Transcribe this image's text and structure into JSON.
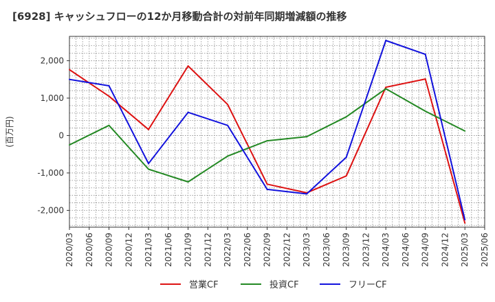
{
  "chart_data": {
    "type": "line",
    "title": "[6928]  キャッシュフローの12か月移動合計の対前年同期増減額の推移",
    "ylabel": "(百万円)",
    "xlabel": "",
    "ylim": [
      -2450,
      2650
    ],
    "yticks": [
      -2000,
      -1000,
      0,
      1000,
      2000
    ],
    "ytick_labels": [
      "-2,000",
      "-1,000",
      "0",
      "1,000",
      "2,000"
    ],
    "categories": [
      "2020/03",
      "2020/06",
      "2020/09",
      "2020/12",
      "2021/03",
      "2021/06",
      "2021/09",
      "2021/12",
      "2022/03",
      "2022/06",
      "2022/09",
      "2022/12",
      "2023/03",
      "2023/06",
      "2023/09",
      "2023/12",
      "2024/03",
      "2024/06",
      "2024/09",
      "2024/12",
      "2025/03",
      "2025/06"
    ],
    "grid": true,
    "legend_position": "bottom",
    "series": [
      {
        "name": "営業CF",
        "color": "#dd1111",
        "points": [
          {
            "x": "2020/03",
            "y": 1760
          },
          {
            "x": "2020/09",
            "y": 1050
          },
          {
            "x": "2021/03",
            "y": 160
          },
          {
            "x": "2021/09",
            "y": 1860
          },
          {
            "x": "2022/03",
            "y": 830
          },
          {
            "x": "2022/09",
            "y": -1300
          },
          {
            "x": "2023/03",
            "y": -1530
          },
          {
            "x": "2023/09",
            "y": -1080
          },
          {
            "x": "2024/03",
            "y": 1290
          },
          {
            "x": "2024/09",
            "y": 1510
          },
          {
            "x": "2025/03",
            "y": -2340
          }
        ]
      },
      {
        "name": "投資CF",
        "color": "#228822",
        "points": [
          {
            "x": "2020/03",
            "y": -250
          },
          {
            "x": "2020/09",
            "y": 270
          },
          {
            "x": "2021/03",
            "y": -900
          },
          {
            "x": "2021/09",
            "y": -1240
          },
          {
            "x": "2022/03",
            "y": -550
          },
          {
            "x": "2022/09",
            "y": -140
          },
          {
            "x": "2023/03",
            "y": -30
          },
          {
            "x": "2023/09",
            "y": 500
          },
          {
            "x": "2024/03",
            "y": 1250
          },
          {
            "x": "2024/09",
            "y": 650
          },
          {
            "x": "2025/03",
            "y": 120
          }
        ]
      },
      {
        "name": "フリーCF",
        "color": "#1111dd",
        "points": [
          {
            "x": "2020/03",
            "y": 1500
          },
          {
            "x": "2020/09",
            "y": 1330
          },
          {
            "x": "2021/03",
            "y": -750
          },
          {
            "x": "2021/09",
            "y": 620
          },
          {
            "x": "2022/03",
            "y": 270
          },
          {
            "x": "2022/09",
            "y": -1440
          },
          {
            "x": "2023/03",
            "y": -1560
          },
          {
            "x": "2023/09",
            "y": -580
          },
          {
            "x": "2024/03",
            "y": 2540
          },
          {
            "x": "2024/09",
            "y": 2170
          },
          {
            "x": "2025/03",
            "y": -2250
          }
        ]
      }
    ]
  }
}
